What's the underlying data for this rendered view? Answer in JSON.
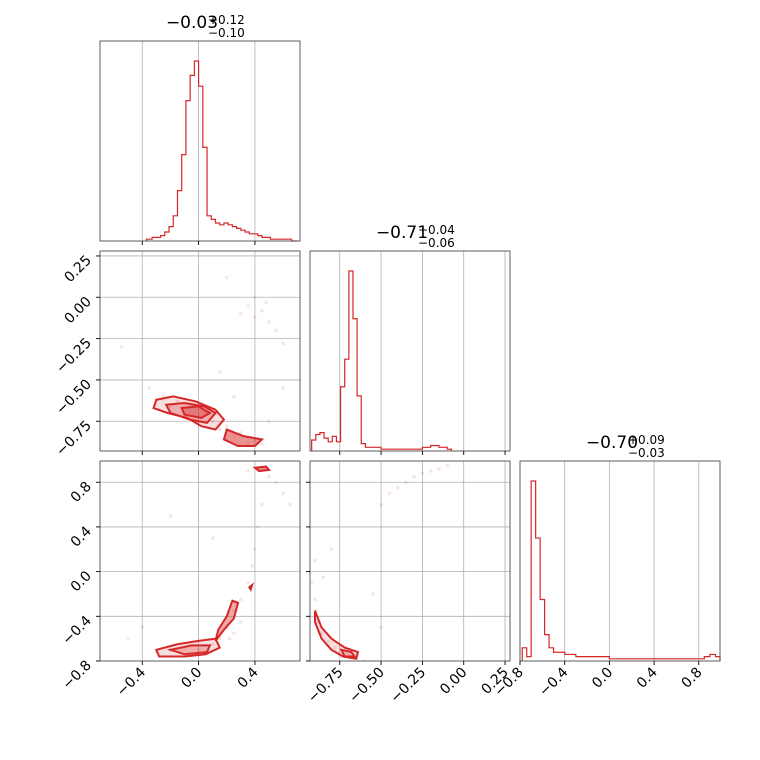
{
  "chart_data": {
    "type": "corner",
    "color": "#d62728",
    "panel_titles": [
      {
        "value": "−0.03",
        "plus": "+0.12",
        "minus": "−0.10"
      },
      {
        "value": "−0.71",
        "plus": "+0.04",
        "minus": "−0.06"
      },
      {
        "value": "−0.70",
        "plus": "+0.09",
        "minus": "−0.03"
      }
    ],
    "grid": true,
    "axes": {
      "p0": {
        "range": [
          -0.7,
          0.72
        ],
        "ticks": [
          -0.4,
          0.0,
          0.4
        ],
        "tick_labels": [
          "−0.4",
          "0.0",
          "0.4"
        ]
      },
      "p1": {
        "range": [
          -0.93,
          0.28
        ],
        "ticks": [
          -0.75,
          -0.5,
          -0.25,
          0.0,
          0.25
        ],
        "tick_labels": [
          "−0.75",
          "−0.50",
          "−0.25",
          "0.00",
          "0.25"
        ]
      },
      "p2": {
        "range": [
          -0.8,
          0.99
        ],
        "ticks": [
          -0.8,
          -0.4,
          0.0,
          0.4,
          0.8
        ],
        "tick_labels": [
          "−0.8",
          "−0.4",
          "0.0",
          "0.4",
          "0.8"
        ]
      }
    },
    "histograms": [
      {
        "param": "p0",
        "x": [
          -0.37,
          -0.33,
          -0.3,
          -0.27,
          -0.24,
          -0.21,
          -0.18,
          -0.15,
          -0.12,
          -0.09,
          -0.06,
          -0.03,
          0.0,
          0.03,
          0.06,
          0.09,
          0.12,
          0.15,
          0.18,
          0.21,
          0.24,
          0.27,
          0.3,
          0.33,
          0.36,
          0.39,
          0.42,
          0.45,
          0.48,
          0.51,
          0.54,
          0.57,
          0.6,
          0.63,
          0.66
        ],
        "density": [
          0.01,
          0.02,
          0.02,
          0.03,
          0.05,
          0.08,
          0.14,
          0.28,
          0.48,
          0.78,
          0.92,
          1.0,
          0.86,
          0.52,
          0.14,
          0.12,
          0.1,
          0.09,
          0.1,
          0.09,
          0.08,
          0.07,
          0.06,
          0.05,
          0.04,
          0.04,
          0.03,
          0.02,
          0.02,
          0.01,
          0.01,
          0.01,
          0.01,
          0.01,
          0.0
        ]
      },
      {
        "param": "p1",
        "x": [
          -0.92,
          -0.895,
          -0.87,
          -0.845,
          -0.82,
          -0.795,
          -0.77,
          -0.745,
          -0.72,
          -0.695,
          -0.67,
          -0.645,
          -0.62,
          -0.595,
          -0.5,
          -0.3,
          -0.25,
          -0.2,
          -0.15,
          -0.1
        ],
        "density": [
          0.06,
          0.09,
          0.1,
          0.07,
          0.05,
          0.08,
          0.05,
          0.35,
          0.5,
          0.98,
          0.72,
          0.3,
          0.04,
          0.02,
          0.01,
          0.01,
          0.02,
          0.03,
          0.02,
          0.01
        ]
      },
      {
        "param": "p2",
        "x": [
          -0.78,
          -0.74,
          -0.7,
          -0.66,
          -0.62,
          -0.58,
          -0.54,
          -0.5,
          -0.4,
          -0.3,
          -0.2,
          -0.1,
          0.0,
          0.2,
          0.4,
          0.75,
          0.8,
          0.85,
          0.9,
          0.95
        ],
        "density": [
          0.06,
          0.02,
          0.82,
          0.56,
          0.28,
          0.12,
          0.06,
          0.04,
          0.03,
          0.02,
          0.02,
          0.02,
          0.01,
          0.01,
          0.01,
          0.01,
          0.01,
          0.02,
          0.03,
          0.02
        ]
      }
    ],
    "scatter_2d": [
      {
        "xparam": "p0",
        "yparam": "p1",
        "points": [
          [
            -0.3,
            -0.62
          ],
          [
            -0.25,
            -0.6
          ],
          [
            -0.2,
            -0.66
          ],
          [
            -0.15,
            -0.63
          ],
          [
            -0.1,
            -0.7
          ],
          [
            -0.05,
            -0.66
          ],
          [
            0.0,
            -0.72
          ],
          [
            0.05,
            -0.69
          ],
          [
            0.1,
            -0.75
          ],
          [
            0.15,
            -0.8
          ],
          [
            0.2,
            -0.78
          ],
          [
            0.25,
            -0.84
          ],
          [
            0.3,
            -0.82
          ],
          [
            0.35,
            -0.88
          ],
          [
            0.4,
            -0.86
          ],
          [
            0.45,
            -0.89
          ],
          [
            0.3,
            -0.1
          ],
          [
            0.35,
            -0.05
          ],
          [
            0.4,
            -0.12
          ],
          [
            0.45,
            -0.08
          ],
          [
            0.5,
            -0.15
          ],
          [
            0.55,
            -0.2
          ],
          [
            0.6,
            -0.28
          ],
          [
            0.4,
            0.0
          ],
          [
            0.48,
            -0.03
          ],
          [
            0.2,
            0.12
          ],
          [
            0.6,
            -0.55
          ],
          [
            -0.55,
            -0.3
          ],
          [
            -0.35,
            -0.55
          ],
          [
            0.15,
            -0.45
          ],
          [
            0.25,
            -0.6
          ],
          [
            0.5,
            -0.75
          ]
        ],
        "contours": [
          [
            [
              -0.3,
              -0.62
            ],
            [
              -0.18,
              -0.6
            ],
            [
              -0.02,
              -0.63
            ],
            [
              0.12,
              -0.68
            ],
            [
              0.18,
              -0.74
            ],
            [
              0.12,
              -0.8
            ],
            [
              0.02,
              -0.78
            ],
            [
              -0.08,
              -0.73
            ],
            [
              -0.22,
              -0.7
            ],
            [
              -0.32,
              -0.67
            ],
            [
              -0.3,
              -0.62
            ]
          ],
          [
            [
              -0.23,
              -0.65
            ],
            [
              -0.1,
              -0.64
            ],
            [
              0.04,
              -0.66
            ],
            [
              0.12,
              -0.7
            ],
            [
              0.06,
              -0.76
            ],
            [
              -0.06,
              -0.74
            ],
            [
              -0.2,
              -0.7
            ],
            [
              -0.23,
              -0.65
            ]
          ],
          [
            [
              -0.12,
              -0.67
            ],
            [
              0.0,
              -0.66
            ],
            [
              0.08,
              -0.7
            ],
            [
              0.02,
              -0.73
            ],
            [
              -0.1,
              -0.71
            ],
            [
              -0.12,
              -0.67
            ]
          ],
          [
            [
              0.2,
              -0.8
            ],
            [
              0.32,
              -0.84
            ],
            [
              0.45,
              -0.86
            ],
            [
              0.4,
              -0.9
            ],
            [
              0.28,
              -0.9
            ],
            [
              0.18,
              -0.86
            ],
            [
              0.2,
              -0.8
            ]
          ]
        ]
      },
      {
        "xparam": "p0",
        "yparam": "p2",
        "points": [
          [
            -0.3,
            -0.72
          ],
          [
            -0.2,
            -0.7
          ],
          [
            -0.1,
            -0.68
          ],
          [
            0.0,
            -0.7
          ],
          [
            0.1,
            -0.65
          ],
          [
            0.15,
            -0.6
          ],
          [
            0.2,
            -0.5
          ],
          [
            0.25,
            -0.35
          ],
          [
            0.3,
            -0.25
          ],
          [
            0.35,
            -0.1
          ],
          [
            0.38,
            0.05
          ],
          [
            0.4,
            0.2
          ],
          [
            0.42,
            0.4
          ],
          [
            0.45,
            0.6
          ],
          [
            0.5,
            0.85
          ],
          [
            0.55,
            0.8
          ],
          [
            0.6,
            0.7
          ],
          [
            0.65,
            0.6
          ],
          [
            0.35,
            0.9
          ],
          [
            -0.4,
            -0.5
          ],
          [
            -0.5,
            -0.6
          ],
          [
            -0.2,
            0.5
          ],
          [
            0.1,
            0.3
          ],
          [
            0.25,
            -0.55
          ],
          [
            0.3,
            -0.45
          ],
          [
            0.22,
            -0.6
          ]
        ],
        "contours": [
          [
            [
              -0.3,
              -0.7
            ],
            [
              -0.15,
              -0.65
            ],
            [
              0.0,
              -0.62
            ],
            [
              0.12,
              -0.6
            ],
            [
              0.15,
              -0.68
            ],
            [
              0.05,
              -0.74
            ],
            [
              -0.1,
              -0.76
            ],
            [
              -0.28,
              -0.76
            ],
            [
              -0.3,
              -0.7
            ]
          ],
          [
            [
              -0.2,
              -0.7
            ],
            [
              -0.05,
              -0.66
            ],
            [
              0.08,
              -0.66
            ],
            [
              0.06,
              -0.72
            ],
            [
              -0.1,
              -0.74
            ],
            [
              -0.2,
              -0.7
            ]
          ],
          [
            [
              0.12,
              -0.62
            ],
            [
              0.18,
              -0.52
            ],
            [
              0.25,
              -0.42
            ],
            [
              0.28,
              -0.28
            ],
            [
              0.24,
              -0.26
            ],
            [
              0.2,
              -0.4
            ],
            [
              0.14,
              -0.52
            ],
            [
              0.12,
              -0.62
            ]
          ],
          [
            [
              0.4,
              0.93
            ],
            [
              0.48,
              0.94
            ],
            [
              0.5,
              0.91
            ],
            [
              0.43,
              0.9
            ],
            [
              0.4,
              0.93
            ]
          ],
          [
            [
              0.36,
              -0.14
            ],
            [
              0.38,
              -0.12
            ],
            [
              0.37,
              -0.16
            ],
            [
              0.36,
              -0.14
            ]
          ]
        ]
      },
      {
        "xparam": "p1",
        "yparam": "p2",
        "points": [
          [
            -0.92,
            -0.1
          ],
          [
            -0.9,
            -0.25
          ],
          [
            -0.89,
            -0.35
          ],
          [
            -0.88,
            -0.45
          ],
          [
            -0.86,
            -0.55
          ],
          [
            -0.82,
            -0.62
          ],
          [
            -0.78,
            -0.68
          ],
          [
            -0.74,
            -0.72
          ],
          [
            -0.7,
            -0.76
          ],
          [
            -0.65,
            -0.74
          ],
          [
            -0.6,
            -0.8
          ],
          [
            -0.5,
            0.6
          ],
          [
            -0.45,
            0.7
          ],
          [
            -0.4,
            0.75
          ],
          [
            -0.35,
            0.8
          ],
          [
            -0.3,
            0.85
          ],
          [
            -0.25,
            0.88
          ],
          [
            -0.2,
            0.9
          ],
          [
            -0.15,
            0.92
          ],
          [
            -0.1,
            0.95
          ],
          [
            -0.9,
            0.1
          ],
          [
            -0.85,
            -0.05
          ],
          [
            -0.8,
            0.2
          ],
          [
            -0.55,
            -0.2
          ],
          [
            -0.5,
            -0.5
          ]
        ],
        "contours": [
          [
            [
              -0.9,
              -0.35
            ],
            [
              -0.86,
              -0.5
            ],
            [
              -0.8,
              -0.6
            ],
            [
              -0.72,
              -0.68
            ],
            [
              -0.64,
              -0.72
            ],
            [
              -0.65,
              -0.78
            ],
            [
              -0.73,
              -0.76
            ],
            [
              -0.8,
              -0.7
            ],
            [
              -0.86,
              -0.6
            ],
            [
              -0.9,
              -0.45
            ],
            [
              -0.9,
              -0.35
            ]
          ],
          [
            [
              -0.74,
              -0.7
            ],
            [
              -0.68,
              -0.72
            ],
            [
              -0.66,
              -0.76
            ],
            [
              -0.72,
              -0.76
            ],
            [
              -0.74,
              -0.7
            ]
          ]
        ]
      }
    ]
  }
}
